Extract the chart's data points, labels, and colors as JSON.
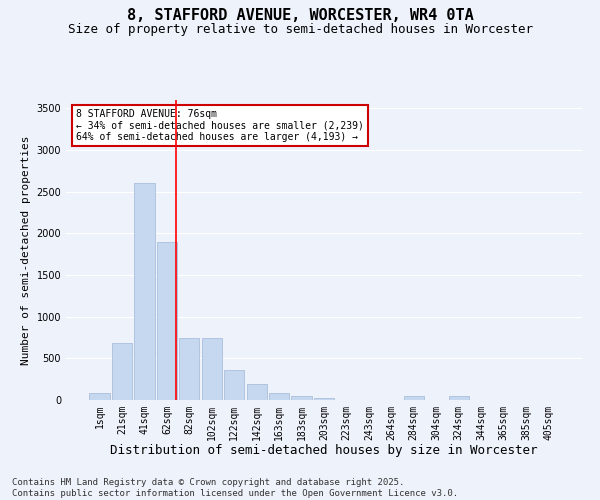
{
  "title1": "8, STAFFORD AVENUE, WORCESTER, WR4 0TA",
  "title2": "Size of property relative to semi-detached houses in Worcester",
  "xlabel": "Distribution of semi-detached houses by size in Worcester",
  "ylabel": "Number of semi-detached properties",
  "footnote": "Contains HM Land Registry data © Crown copyright and database right 2025.\nContains public sector information licensed under the Open Government Licence v3.0.",
  "bar_labels": [
    "1sqm",
    "21sqm",
    "41sqm",
    "62sqm",
    "82sqm",
    "102sqm",
    "122sqm",
    "142sqm",
    "163sqm",
    "183sqm",
    "203sqm",
    "223sqm",
    "243sqm",
    "264sqm",
    "284sqm",
    "304sqm",
    "324sqm",
    "344sqm",
    "365sqm",
    "385sqm",
    "405sqm"
  ],
  "bar_values": [
    80,
    680,
    2600,
    1900,
    750,
    750,
    360,
    190,
    80,
    50,
    30,
    0,
    0,
    0,
    50,
    0,
    50,
    0,
    0,
    0,
    0
  ],
  "bar_color": "#c5d8f0",
  "bar_edge_color": "#a0b8d8",
  "annotation_text": "8 STAFFORD AVENUE: 76sqm\n← 34% of semi-detached houses are smaller (2,239)\n64% of semi-detached houses are larger (4,193) →",
  "annotation_box_color": "#ffffff",
  "annotation_border_color": "#cc0000",
  "red_line_x": 3.42,
  "ylim": [
    0,
    3600
  ],
  "yticks": [
    0,
    500,
    1000,
    1500,
    2000,
    2500,
    3000,
    3500
  ],
  "bg_color": "#eef2fb",
  "grid_color": "#ffffff",
  "title1_fontsize": 11,
  "title2_fontsize": 9,
  "xlabel_fontsize": 9,
  "ylabel_fontsize": 8,
  "tick_fontsize": 7,
  "footnote_fontsize": 6.5
}
